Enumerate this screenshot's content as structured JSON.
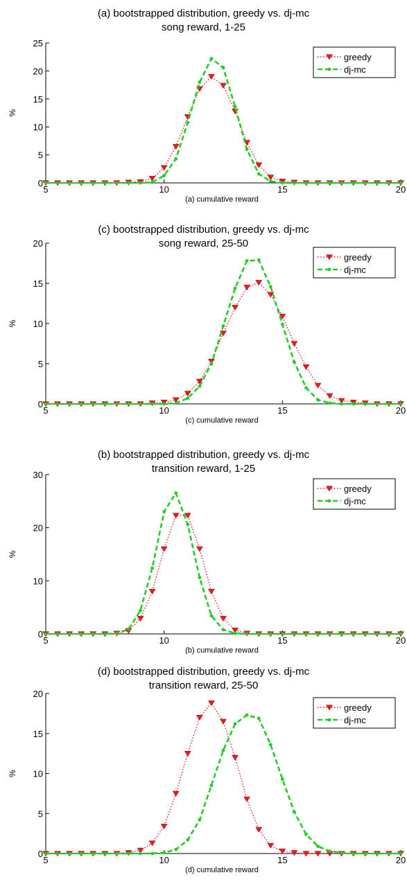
{
  "chart_data": [
    {
      "type": "line",
      "title": "(a) bootstrapped distribution, greedy vs. dj-mc",
      "subtitle": "song reward, 1-25",
      "xlabel": "(a) cumulative reward",
      "ylabel": "%",
      "xlim": [
        5,
        20
      ],
      "ylim": [
        0,
        25
      ],
      "xticks": [
        5,
        10,
        15,
        20
      ],
      "yticks": [
        0,
        5,
        10,
        15,
        20,
        25
      ],
      "grid": false,
      "legend_position": "top-right",
      "x": [
        5,
        5.5,
        6,
        6.5,
        7,
        7.5,
        8,
        8.5,
        9,
        9.5,
        10,
        10.5,
        11,
        11.5,
        12,
        12.5,
        13,
        13.5,
        14,
        14.5,
        15,
        15.5,
        16,
        16.5,
        17,
        17.5,
        18,
        18.5,
        19,
        19.5,
        20
      ],
      "series": [
        {
          "name": "greedy",
          "color": "#e02020",
          "marker": "triangle-down",
          "line": "dotted",
          "values": [
            0,
            0,
            0,
            0,
            0,
            0,
            0,
            0.1,
            0.2,
            0.8,
            2.7,
            6.5,
            11.8,
            16.8,
            19.0,
            17.4,
            12.8,
            7.2,
            3.2,
            1.0,
            0.3,
            0.1,
            0,
            0,
            0,
            0,
            0,
            0,
            0,
            0,
            0
          ]
        },
        {
          "name": "dj-mc",
          "color": "#22cc22",
          "marker": "star",
          "line": "dashed",
          "values": [
            0,
            0,
            0,
            0,
            0,
            0,
            0,
            0,
            0,
            0.1,
            1.3,
            4.3,
            10.8,
            18.0,
            22.2,
            20.6,
            13.6,
            6.0,
            1.6,
            0.3,
            0,
            0,
            0,
            0,
            0,
            0,
            0,
            0,
            0,
            0,
            0
          ]
        }
      ]
    },
    {
      "type": "line",
      "title": "(c) bootstrapped distribution, greedy vs. dj-mc",
      "subtitle": "song reward, 25-50",
      "xlabel": "(c) cumulative reward",
      "ylabel": "%",
      "xlim": [
        5,
        20
      ],
      "ylim": [
        0,
        20
      ],
      "xticks": [
        5,
        10,
        15,
        20
      ],
      "yticks": [
        0,
        5,
        10,
        15,
        20
      ],
      "grid": false,
      "legend_position": "top-right",
      "x": [
        5,
        5.5,
        6,
        6.5,
        7,
        7.5,
        8,
        8.5,
        9,
        9.5,
        10,
        10.5,
        11,
        11.5,
        12,
        12.5,
        13,
        13.5,
        14,
        14.5,
        15,
        15.5,
        16,
        16.5,
        17,
        17.5,
        18,
        18.5,
        19,
        19.5,
        20
      ],
      "series": [
        {
          "name": "greedy",
          "color": "#e02020",
          "marker": "triangle-down",
          "line": "dotted",
          "values": [
            0,
            0,
            0,
            0,
            0,
            0,
            0,
            0,
            0,
            0.1,
            0.2,
            0.5,
            1.3,
            2.8,
            5.3,
            8.8,
            12.0,
            14.5,
            15.1,
            13.6,
            10.9,
            7.5,
            4.6,
            2.3,
            1.0,
            0.4,
            0.2,
            0.1,
            0,
            0,
            0
          ]
        },
        {
          "name": "dj-mc",
          "color": "#22cc22",
          "marker": "star",
          "line": "dashed",
          "values": [
            0,
            0,
            0,
            0,
            0,
            0,
            0,
            0,
            0,
            0,
            0,
            0.1,
            0.7,
            2.2,
            5.0,
            9.7,
            14.4,
            17.8,
            17.9,
            14.6,
            9.9,
            5.2,
            2.0,
            0.5,
            0.1,
            0,
            0,
            0,
            0,
            0,
            0
          ]
        }
      ]
    },
    {
      "type": "line",
      "title": "(b) bootstrapped distribution, greedy vs. dj-mc",
      "subtitle": "transition reward, 1-25",
      "xlabel": "(b) cumulative reward",
      "ylabel": "%",
      "xlim": [
        5,
        20
      ],
      "ylim": [
        0,
        30
      ],
      "xticks": [
        5,
        10,
        15,
        20
      ],
      "yticks": [
        0,
        10,
        20,
        30
      ],
      "grid": false,
      "legend_position": "top-right",
      "x": [
        5,
        5.5,
        6,
        6.5,
        7,
        7.5,
        8,
        8.5,
        9,
        9.5,
        10,
        10.5,
        11,
        11.5,
        12,
        12.5,
        13,
        13.5,
        14,
        14.5,
        15,
        15.5,
        16,
        16.5,
        17,
        17.5,
        18,
        18.5,
        19,
        19.5,
        20
      ],
      "series": [
        {
          "name": "greedy",
          "color": "#e02020",
          "marker": "triangle-down",
          "line": "dotted",
          "values": [
            0,
            0,
            0,
            0,
            0,
            0,
            0.1,
            0.6,
            2.9,
            8.0,
            16.0,
            22.3,
            22.3,
            16.0,
            8.0,
            2.9,
            0.7,
            0.1,
            0,
            0,
            0,
            0,
            0,
            0,
            0,
            0,
            0,
            0,
            0,
            0,
            0
          ]
        },
        {
          "name": "dj-mc",
          "color": "#22cc22",
          "marker": "star",
          "line": "dashed",
          "values": [
            0,
            0,
            0,
            0,
            0,
            0,
            0.1,
            0.9,
            4.4,
            12.4,
            23.0,
            26.5,
            20.6,
            10.6,
            3.4,
            0.8,
            0.1,
            0,
            0,
            0,
            0,
            0,
            0,
            0,
            0,
            0,
            0,
            0,
            0,
            0,
            0
          ]
        }
      ]
    },
    {
      "type": "line",
      "title": "(d) bootstrapped distribution, greedy vs. dj-mc",
      "subtitle": "transition reward, 25-50",
      "xlabel": "(d) cumulative reward",
      "ylabel": "%",
      "xlim": [
        5,
        20
      ],
      "ylim": [
        0,
        20
      ],
      "xticks": [
        5,
        10,
        15,
        20
      ],
      "yticks": [
        0,
        5,
        10,
        15,
        20
      ],
      "grid": false,
      "legend_position": "top-right",
      "x": [
        5,
        5.5,
        6,
        6.5,
        7,
        7.5,
        8,
        8.5,
        9,
        9.5,
        10,
        10.5,
        11,
        11.5,
        12,
        12.5,
        13,
        13.5,
        14,
        14.5,
        15,
        15.5,
        16,
        16.5,
        17,
        17.5,
        18,
        18.5,
        19,
        19.5,
        20
      ],
      "series": [
        {
          "name": "greedy",
          "color": "#e02020",
          "marker": "triangle-down",
          "line": "dotted",
          "values": [
            0,
            0,
            0,
            0,
            0,
            0,
            0,
            0.1,
            0.4,
            1.3,
            3.4,
            7.5,
            12.5,
            17.0,
            18.8,
            16.5,
            12.0,
            6.8,
            3.0,
            1.0,
            0.3,
            0.1,
            0,
            0,
            0,
            0,
            0,
            0,
            0,
            0,
            0
          ]
        },
        {
          "name": "dj-mc",
          "color": "#22cc22",
          "marker": "star",
          "line": "dashed",
          "values": [
            0,
            0,
            0,
            0,
            0,
            0,
            0,
            0,
            0,
            0,
            0.1,
            0.5,
            1.7,
            4.2,
            8.5,
            12.9,
            16.2,
            17.3,
            16.9,
            13.6,
            9.3,
            5.2,
            2.4,
            0.9,
            0.3,
            0.1,
            0,
            0,
            0,
            0,
            0
          ]
        }
      ]
    }
  ]
}
